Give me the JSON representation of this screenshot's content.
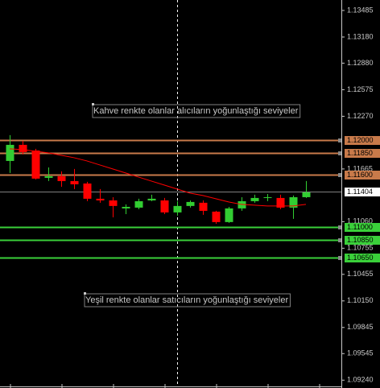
{
  "chart_data": {
    "type": "candlestick",
    "ylim": [
      1.0915,
      1.13605
    ],
    "yticks": [
      1.13485,
      {
        "value": 1.1318,
        "label": "1.13180"
      },
      {
        "value": 1.1288,
        "label": "1.12880"
      },
      1.12575,
      {
        "value": 1.1227,
        "label": "1.12270"
      },
      1.11665,
      {
        "value": 1.1106,
        "label": "1.11060"
      },
      1.10755,
      1.10455,
      {
        "value": 1.1015,
        "label": "1.10150"
      },
      1.09845,
      1.09545,
      {
        "value": 1.0924,
        "label": "1.09240"
      }
    ],
    "up_color": "#32cd32",
    "down_color": "#ff0000",
    "candles": {
      "open": [
        1.11757,
        1.11942,
        1.11877,
        1.11563,
        1.11582,
        1.11526,
        1.11498,
        1.11323,
        1.11304,
        1.11212,
        1.11221,
        1.11304,
        1.11304,
        1.11166,
        1.1124,
        1.11277,
        1.11175,
        1.11055,
        1.11212,
        1.11295,
        1.11332,
        1.11332,
        1.11221,
        1.11341
      ],
      "high": [
        1.12053,
        1.11988,
        1.11896,
        1.11683,
        1.11637,
        1.11665,
        1.11517,
        1.11434,
        1.11341,
        1.11258,
        1.11323,
        1.11369,
        1.11332,
        1.11295,
        1.11304,
        1.11304,
        1.11184,
        1.1123,
        1.11341,
        1.11369,
        1.11378,
        1.11369,
        1.1136,
        1.11526
      ],
      "low": [
        1.11619,
        1.11831,
        1.11545,
        1.11526,
        1.11461,
        1.11434,
        1.11295,
        1.11277,
        1.1111,
        1.11147,
        1.11203,
        1.11295,
        1.11147,
        1.11129,
        1.11221,
        1.11138,
        1.11036,
        1.11046,
        1.11184,
        1.11277,
        1.11295,
        1.11203,
        1.11092,
        1.11332
      ],
      "close": [
        1.11942,
        1.11859,
        1.11554,
        1.11582,
        1.11526,
        1.11489,
        1.11323,
        1.11304,
        1.1124,
        1.1123,
        1.11295,
        1.11323,
        1.11166,
        1.1124,
        1.11286,
        1.11184,
        1.11055,
        1.11212,
        1.11295,
        1.11332,
        1.11341,
        1.11221,
        1.11341,
        1.11397
      ]
    },
    "moving_average": {
      "color": "#ff0000",
      "values": [
        1.11896,
        1.11887,
        1.11868,
        1.1185,
        1.11822,
        1.11794,
        1.11757,
        1.11711,
        1.11665,
        1.11619,
        1.11572,
        1.11526,
        1.1148,
        1.11434,
        1.11388,
        1.1136,
        1.11323,
        1.11286,
        1.11258,
        1.11249,
        1.1124,
        1.1124,
        1.1124,
        1.11258
      ]
    },
    "levels": [
      {
        "value": 1.12,
        "label": "1.12000",
        "color": "#c87a4a"
      },
      {
        "value": 1.1185,
        "label": "1.11850",
        "color": "#c87a4a"
      },
      {
        "value": 1.116,
        "label": "1.11600",
        "color": "#c87a4a"
      },
      {
        "value": 1.11,
        "label": "1.11000",
        "color": "#3ad03a"
      },
      {
        "value": 1.1085,
        "label": "1.10850",
        "color": "#3ad03a"
      },
      {
        "value": 1.1065,
        "label": "1.10650",
        "color": "#3ad03a"
      }
    ],
    "current_price": {
      "value": 1.11404,
      "label": "1.11404",
      "color": "#808080"
    },
    "annotations": [
      {
        "text": "Kahve renkte olanlar alıcıların yoğunlaştığı seviyeler"
      },
      {
        "text": "Yeşil renkte olanlar satıcıların yoğunlaştığı seviyeler"
      }
    ]
  }
}
